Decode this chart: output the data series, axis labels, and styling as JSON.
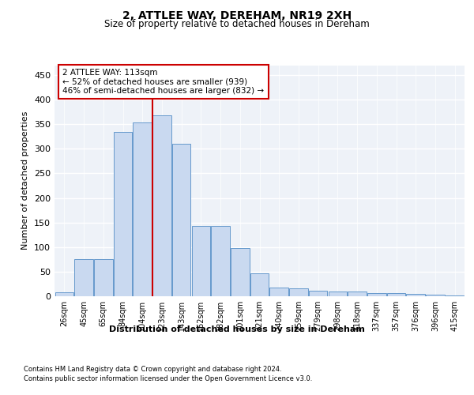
{
  "title": "2, ATTLEE WAY, DEREHAM, NR19 2XH",
  "subtitle": "Size of property relative to detached houses in Dereham",
  "xlabel": "Distribution of detached houses by size in Dereham",
  "ylabel": "Number of detached properties",
  "bar_color": "#c9d9f0",
  "bar_edge_color": "#6699cc",
  "background_color": "#eef2f8",
  "grid_color": "#ffffff",
  "categories": [
    "26sqm",
    "45sqm",
    "65sqm",
    "84sqm",
    "104sqm",
    "123sqm",
    "143sqm",
    "162sqm",
    "182sqm",
    "201sqm",
    "221sqm",
    "240sqm",
    "259sqm",
    "279sqm",
    "298sqm",
    "318sqm",
    "337sqm",
    "357sqm",
    "376sqm",
    "396sqm",
    "415sqm"
  ],
  "values": [
    8,
    75,
    75,
    335,
    353,
    368,
    310,
    143,
    143,
    98,
    46,
    18,
    16,
    12,
    10,
    9,
    6,
    6,
    5,
    3,
    2
  ],
  "vline_x_index": 4.5,
  "vline_color": "#cc0000",
  "annotation_text": "2 ATTLEE WAY: 113sqm\n← 52% of detached houses are smaller (939)\n46% of semi-detached houses are larger (832) →",
  "annotation_box_color": "#ffffff",
  "annotation_box_edge": "#cc0000",
  "ylim": [
    0,
    470
  ],
  "yticks": [
    0,
    50,
    100,
    150,
    200,
    250,
    300,
    350,
    400,
    450
  ],
  "footer_line1": "Contains HM Land Registry data © Crown copyright and database right 2024.",
  "footer_line2": "Contains public sector information licensed under the Open Government Licence v3.0."
}
